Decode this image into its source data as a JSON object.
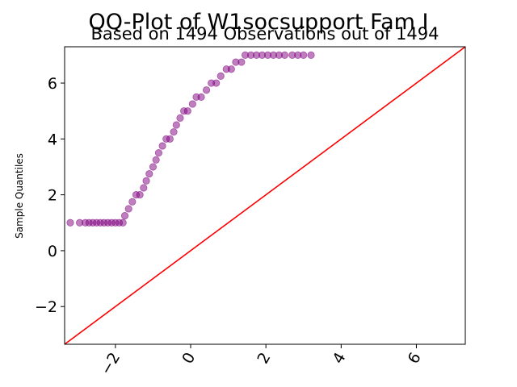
{
  "chart_data": {
    "type": "scatter",
    "title": "QQ-Plot of W1socsupport Fam I",
    "subtitle": "Based on 1494 Observations out of 1494",
    "xlabel": "",
    "ylabel": "Sample Quantiles",
    "xlim": [
      -3.35,
      7.3
    ],
    "ylim": [
      -3.35,
      7.3
    ],
    "xticks": [
      -2,
      0,
      2,
      4,
      6
    ],
    "yticks": [
      -2,
      0,
      2,
      4,
      6
    ],
    "xtick_labels": [
      "−2",
      "0",
      "2",
      "4",
      "6"
    ],
    "ytick_labels": [
      "−2",
      "0",
      "2",
      "4",
      "6"
    ],
    "grid": false,
    "colors": {
      "points": "#800080",
      "reference_line": "#ff0000",
      "axes": "#000000"
    },
    "reference_line": {
      "slope": 1,
      "intercept": 0
    },
    "series": [
      {
        "points": [
          [
            -3.2,
            1.0
          ],
          [
            -2.95,
            1.0
          ],
          [
            -2.8,
            1.0
          ],
          [
            -2.7,
            1.0
          ],
          [
            -2.6,
            1.0
          ],
          [
            -2.5,
            1.0
          ],
          [
            -2.4,
            1.0
          ],
          [
            -2.3,
            1.0
          ],
          [
            -2.2,
            1.0
          ],
          [
            -2.1,
            1.0
          ],
          [
            -2.0,
            1.0
          ],
          [
            -1.9,
            1.0
          ],
          [
            -1.8,
            1.0
          ],
          [
            -1.75,
            1.25
          ],
          [
            -1.65,
            1.5
          ],
          [
            -1.55,
            1.75
          ],
          [
            -1.45,
            2.0
          ],
          [
            -1.35,
            2.0
          ],
          [
            -1.25,
            2.25
          ],
          [
            -1.18,
            2.5
          ],
          [
            -1.1,
            2.75
          ],
          [
            -1.0,
            3.0
          ],
          [
            -0.92,
            3.25
          ],
          [
            -0.85,
            3.5
          ],
          [
            -0.75,
            3.75
          ],
          [
            -0.65,
            4.0
          ],
          [
            -0.55,
            4.0
          ],
          [
            -0.45,
            4.25
          ],
          [
            -0.38,
            4.5
          ],
          [
            -0.28,
            4.75
          ],
          [
            -0.18,
            5.0
          ],
          [
            -0.08,
            5.0
          ],
          [
            0.05,
            5.25
          ],
          [
            0.15,
            5.5
          ],
          [
            0.28,
            5.5
          ],
          [
            0.42,
            5.75
          ],
          [
            0.55,
            6.0
          ],
          [
            0.68,
            6.0
          ],
          [
            0.8,
            6.25
          ],
          [
            0.95,
            6.5
          ],
          [
            1.08,
            6.5
          ],
          [
            1.2,
            6.75
          ],
          [
            1.35,
            6.75
          ],
          [
            1.45,
            7.0
          ],
          [
            1.6,
            7.0
          ],
          [
            1.75,
            7.0
          ],
          [
            1.9,
            7.0
          ],
          [
            2.05,
            7.0
          ],
          [
            2.2,
            7.0
          ],
          [
            2.35,
            7.0
          ],
          [
            2.5,
            7.0
          ],
          [
            2.7,
            7.0
          ],
          [
            2.85,
            7.0
          ],
          [
            3.0,
            7.0
          ],
          [
            3.2,
            7.0
          ]
        ]
      }
    ]
  }
}
